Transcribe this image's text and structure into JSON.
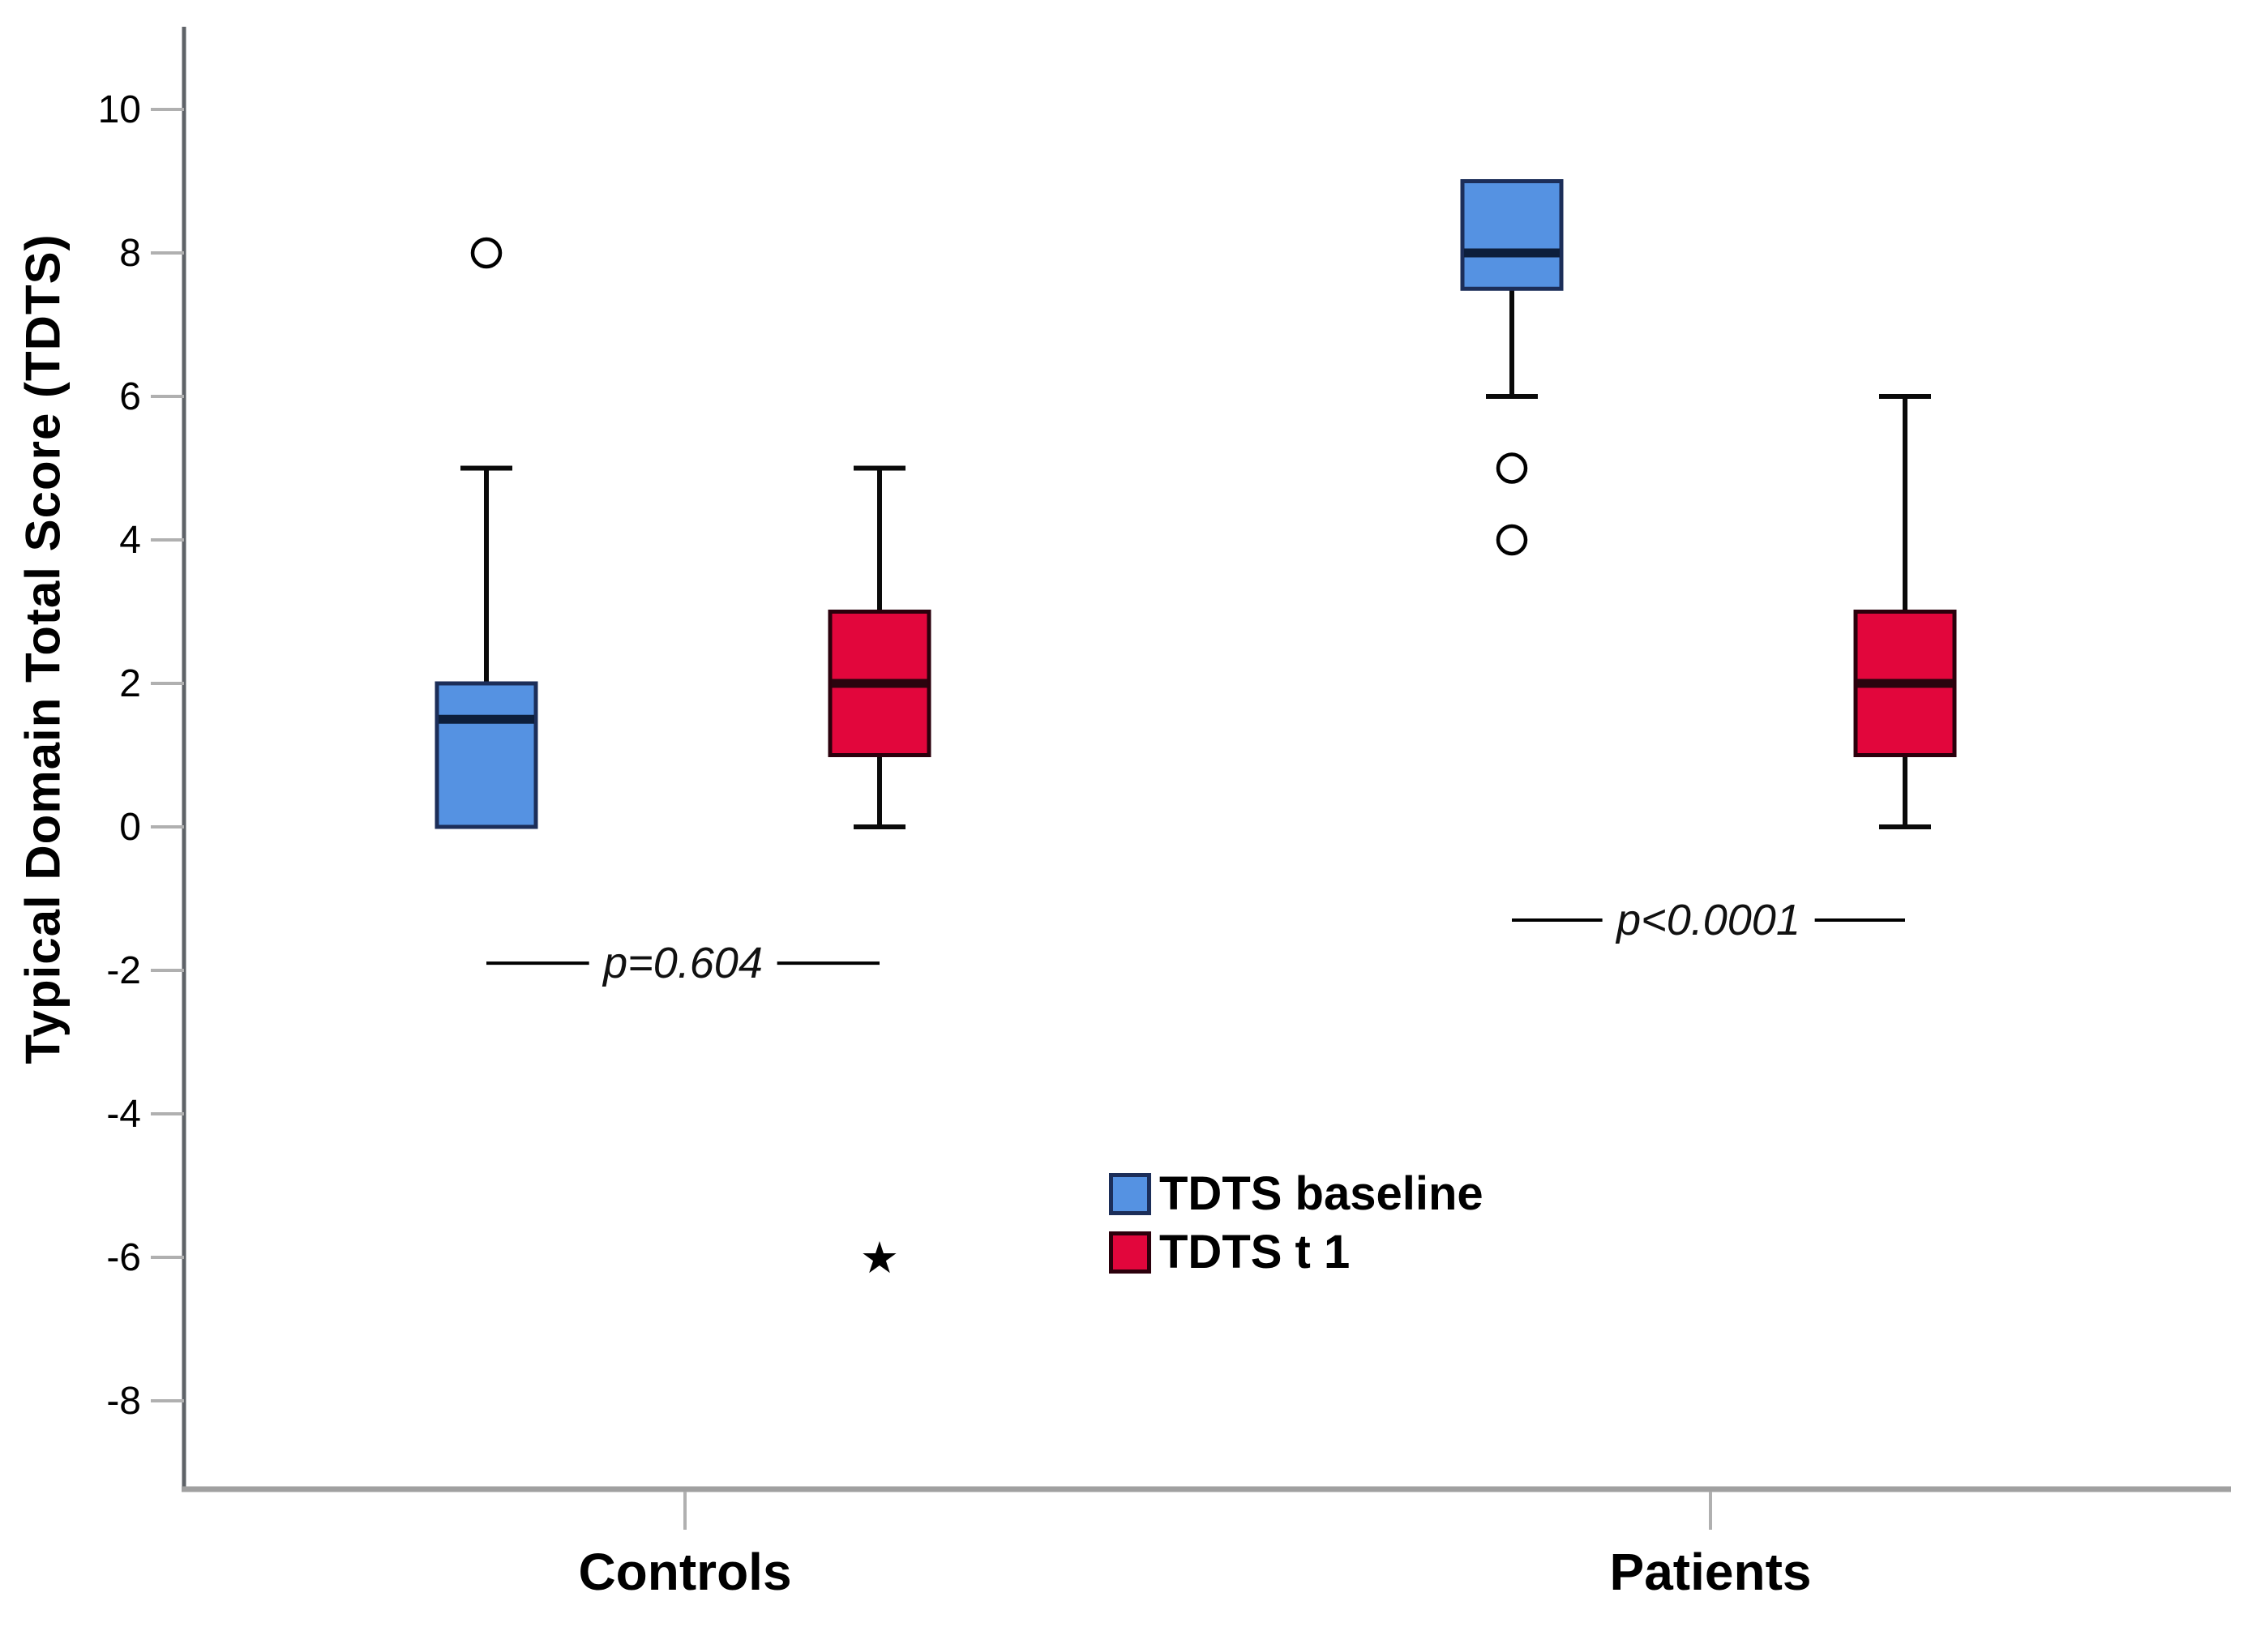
{
  "chart_data": {
    "type": "boxplot",
    "title": "",
    "ylabel": "Typical Domain Total Score (TDTS)",
    "y_axis": {
      "ticks": [
        10,
        8,
        6,
        4,
        2,
        0,
        -2,
        -4,
        -6,
        -8
      ],
      "ylim": [
        -9.2,
        11.1
      ],
      "grid": false
    },
    "groups": [
      {
        "id": "controls",
        "label": "Controls"
      },
      {
        "id": "patients",
        "label": "Patients"
      }
    ],
    "series": [
      {
        "id": "baseline",
        "name": "TDTS baseline",
        "fill": "#5592e2",
        "border": "#1c2e59",
        "median_color": "#0d1f3c"
      },
      {
        "id": "t1",
        "name": "TDTS t 1",
        "fill": "#e2063c",
        "border": "#2b000c",
        "median_color": "#2a040e"
      }
    ],
    "boxes": [
      {
        "group": "controls",
        "series": "baseline",
        "q1": 0,
        "median": 1.5,
        "q3": 2,
        "whisker_low": null,
        "whisker_high": 5,
        "outliers": [
          8
        ],
        "extremes": []
      },
      {
        "group": "controls",
        "series": "t1",
        "q1": 1,
        "median": 2,
        "q3": 3,
        "whisker_low": 0,
        "whisker_high": 5,
        "outliers": [],
        "extremes": [
          -6
        ]
      },
      {
        "group": "patients",
        "series": "baseline",
        "q1": 7.5,
        "median": 8,
        "q3": 9,
        "whisker_low": 6,
        "whisker_high": null,
        "outliers": [
          5,
          4
        ],
        "extremes": []
      },
      {
        "group": "patients",
        "series": "t1",
        "q1": 1,
        "median": 2,
        "q3": 3,
        "whisker_low": 0,
        "whisker_high": 6,
        "outliers": [],
        "extremes": []
      }
    ],
    "annotations": [
      {
        "group": "controls",
        "text": "p=0.604",
        "y_value": -1.9
      },
      {
        "group": "patients",
        "text": "p<0.0001",
        "y_value": -1.3
      }
    ],
    "legend": {
      "position": "bottom-center",
      "items": [
        "TDTS baseline",
        "TDTS t 1"
      ]
    },
    "style": {
      "y_axis_color": "#5f6368",
      "x_axis_color": "#a0a0a0",
      "tick_color": "#b0b0b0",
      "tick_label_color": "#000000",
      "whisker_color": "#0a0a0a",
      "outlier_color": "#000000",
      "annotation_line_color": "#000000",
      "outlier_marker": "circle",
      "extreme_marker": "star"
    }
  }
}
